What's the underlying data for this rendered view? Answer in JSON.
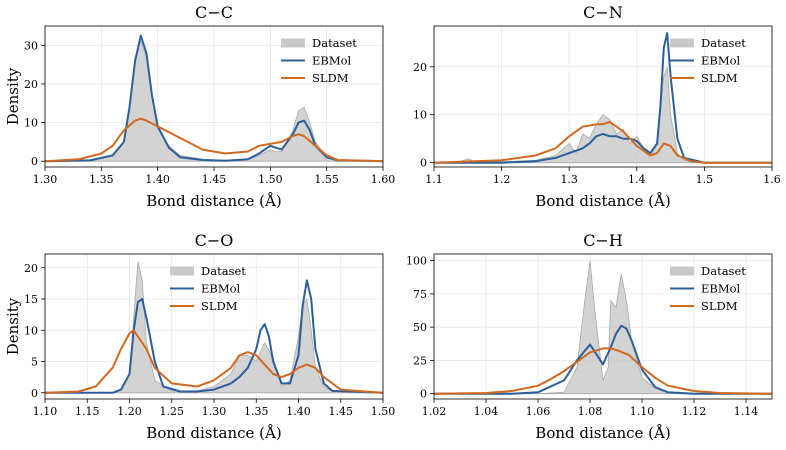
{
  "figure": {
    "ylabel": "Density",
    "legend": [
      {
        "name": "Dataset",
        "color": "#c8c8c8",
        "style": "patch"
      },
      {
        "name": "EBMol",
        "color": "#2b5f9c",
        "style": "line"
      },
      {
        "name": "SLDM",
        "color": "#d2691e",
        "style": "line"
      }
    ]
  },
  "chart_data": [
    {
      "type": "area",
      "title": "C−C",
      "xlabel": "Bond distance (Å)",
      "ylabel": "Density",
      "xlim": [
        1.3,
        1.6
      ],
      "ylim": [
        -1.5,
        35
      ],
      "xticks": [
        "1.30",
        "1.35",
        "1.40",
        "1.45",
        "1.50",
        "1.55",
        "1.60"
      ],
      "yticks": [
        "0",
        "10",
        "20",
        "30"
      ],
      "legend_position": "top-right",
      "grid": true,
      "series": [
        {
          "name": "Dataset",
          "color": "#c8c8c8",
          "x": [
            1.3,
            1.34,
            1.36,
            1.37,
            1.375,
            1.38,
            1.385,
            1.39,
            1.395,
            1.4,
            1.41,
            1.42,
            1.44,
            1.46,
            1.48,
            1.49,
            1.5,
            1.505,
            1.51,
            1.52,
            1.525,
            1.53,
            1.535,
            1.54,
            1.55,
            1.56,
            1.6
          ],
          "values": [
            0,
            0.2,
            1.5,
            5,
            14,
            27,
            31,
            27,
            17,
            9,
            4,
            1.5,
            0.5,
            0.2,
            0.5,
            1.5,
            3,
            2.5,
            2.5,
            8,
            13,
            14,
            10,
            5,
            1,
            0.2,
            0
          ]
        },
        {
          "name": "EBMol",
          "color": "#2b5f9c",
          "x": [
            1.3,
            1.34,
            1.36,
            1.37,
            1.375,
            1.38,
            1.385,
            1.39,
            1.395,
            1.4,
            1.41,
            1.42,
            1.44,
            1.46,
            1.48,
            1.49,
            1.5,
            1.51,
            1.52,
            1.525,
            1.53,
            1.535,
            1.54,
            1.55,
            1.56,
            1.6
          ],
          "values": [
            0,
            0.2,
            1.5,
            5,
            14,
            26,
            32.5,
            28,
            17,
            9,
            3.5,
            1,
            0.3,
            0.1,
            0.5,
            2,
            4,
            3,
            7,
            10,
            10.5,
            8,
            4,
            1,
            0.2,
            0
          ]
        },
        {
          "name": "SLDM",
          "color": "#d2691e",
          "x": [
            1.3,
            1.33,
            1.35,
            1.36,
            1.37,
            1.38,
            1.385,
            1.39,
            1.4,
            1.42,
            1.44,
            1.46,
            1.48,
            1.49,
            1.5,
            1.51,
            1.52,
            1.525,
            1.53,
            1.54,
            1.55,
            1.56,
            1.6
          ],
          "values": [
            0,
            0.5,
            2,
            4,
            8,
            10.5,
            11,
            10.5,
            9,
            6,
            3,
            2,
            2.5,
            4,
            4.5,
            5,
            6.5,
            7,
            6.5,
            4,
            1.5,
            0.3,
            0
          ]
        }
      ]
    },
    {
      "type": "area",
      "title": "C−N",
      "xlabel": "Bond distance (Å)",
      "ylabel": "",
      "xlim": [
        1.1,
        1.6
      ],
      "ylim": [
        -0.9,
        28.5
      ],
      "xticks": [
        "1.1",
        "1.2",
        "1.3",
        "1.4",
        "1.5",
        "1.6"
      ],
      "yticks": [
        "0",
        "10",
        "20"
      ],
      "legend_position": "top-right",
      "grid": true,
      "series": [
        {
          "name": "Dataset",
          "color": "#c8c8c8",
          "x": [
            1.1,
            1.14,
            1.15,
            1.16,
            1.2,
            1.25,
            1.28,
            1.3,
            1.31,
            1.32,
            1.33,
            1.34,
            1.35,
            1.36,
            1.37,
            1.38,
            1.39,
            1.4,
            1.41,
            1.42,
            1.43,
            1.435,
            1.44,
            1.445,
            1.45,
            1.46,
            1.47,
            1.5,
            1.6
          ],
          "values": [
            0,
            0.3,
            0.8,
            0.3,
            0.2,
            0.5,
            1.5,
            4,
            2,
            6,
            5,
            8,
            10,
            9,
            6,
            7,
            4,
            5.5,
            3,
            1.5,
            4,
            12,
            18,
            20,
            10,
            2,
            0.5,
            0,
            0
          ]
        },
        {
          "name": "EBMol",
          "color": "#2b5f9c",
          "x": [
            1.1,
            1.2,
            1.25,
            1.28,
            1.3,
            1.32,
            1.33,
            1.34,
            1.35,
            1.36,
            1.37,
            1.38,
            1.39,
            1.4,
            1.41,
            1.42,
            1.43,
            1.435,
            1.44,
            1.445,
            1.45,
            1.46,
            1.47,
            1.5,
            1.6
          ],
          "values": [
            0,
            0,
            0.3,
            1,
            2,
            3,
            4,
            5.5,
            6,
            5.5,
            5.5,
            5,
            5,
            4.5,
            3,
            2,
            4,
            12,
            24,
            27,
            18,
            5,
            1,
            0,
            0
          ]
        },
        {
          "name": "SLDM",
          "color": "#d2691e",
          "x": [
            1.1,
            1.2,
            1.25,
            1.28,
            1.3,
            1.32,
            1.34,
            1.35,
            1.36,
            1.37,
            1.38,
            1.4,
            1.42,
            1.43,
            1.44,
            1.45,
            1.46,
            1.48,
            1.5,
            1.6
          ],
          "values": [
            0,
            0.5,
            1.5,
            3,
            5.5,
            7.5,
            8,
            8,
            8.5,
            7.5,
            6.5,
            3.5,
            1.5,
            2,
            4,
            3.5,
            1.5,
            0.3,
            0,
            0
          ]
        }
      ]
    },
    {
      "type": "area",
      "title": "C−O",
      "xlabel": "Bond distance (Å)",
      "ylabel": "Density",
      "xlim": [
        1.1,
        1.5
      ],
      "ylim": [
        -1,
        22.2
      ],
      "xticks": [
        "1.10",
        "1.15",
        "1.20",
        "1.25",
        "1.30",
        "1.35",
        "1.40",
        "1.45",
        "1.50"
      ],
      "yticks": [
        "0",
        "5",
        "10",
        "15",
        "20"
      ],
      "legend_position": "top-center",
      "grid": true,
      "series": [
        {
          "name": "Dataset",
          "color": "#c8c8c8",
          "x": [
            1.1,
            1.18,
            1.19,
            1.2,
            1.205,
            1.21,
            1.215,
            1.22,
            1.23,
            1.25,
            1.28,
            1.3,
            1.32,
            1.33,
            1.34,
            1.35,
            1.36,
            1.37,
            1.38,
            1.39,
            1.4,
            1.405,
            1.41,
            1.415,
            1.42,
            1.43,
            1.44,
            1.5
          ],
          "values": [
            0,
            0,
            0.5,
            3,
            12,
            21,
            18,
            8,
            2,
            0.3,
            0.3,
            1,
            3,
            6,
            6,
            5,
            8,
            5.5,
            1,
            2,
            9,
            14,
            15,
            10,
            4,
            1,
            0.2,
            0
          ]
        },
        {
          "name": "EBMol",
          "color": "#2b5f9c",
          "x": [
            1.1,
            1.18,
            1.19,
            1.2,
            1.205,
            1.21,
            1.215,
            1.22,
            1.23,
            1.24,
            1.26,
            1.28,
            1.3,
            1.32,
            1.33,
            1.34,
            1.35,
            1.355,
            1.36,
            1.365,
            1.37,
            1.38,
            1.39,
            1.4,
            1.405,
            1.41,
            1.415,
            1.42,
            1.43,
            1.44,
            1.5
          ],
          "values": [
            0,
            0,
            0.5,
            3,
            10,
            14.5,
            15,
            12,
            5,
            1,
            0.2,
            0.2,
            0.5,
            1.5,
            2.5,
            4,
            7,
            10,
            11,
            9,
            5,
            1.5,
            1.5,
            6,
            14,
            18,
            15,
            7,
            1.5,
            0.3,
            0
          ]
        },
        {
          "name": "SLDM",
          "color": "#d2691e",
          "x": [
            1.1,
            1.14,
            1.16,
            1.18,
            1.19,
            1.2,
            1.205,
            1.21,
            1.22,
            1.23,
            1.25,
            1.28,
            1.3,
            1.32,
            1.33,
            1.34,
            1.35,
            1.36,
            1.37,
            1.38,
            1.39,
            1.4,
            1.41,
            1.42,
            1.43,
            1.45,
            1.5
          ],
          "values": [
            0,
            0.2,
            1,
            4,
            7,
            9.5,
            10,
            9,
            7,
            4,
            1.5,
            1,
            2,
            4,
            6,
            6.5,
            6,
            4.5,
            3,
            2.5,
            3,
            4,
            4.5,
            4,
            2.5,
            0.5,
            0
          ]
        }
      ]
    },
    {
      "type": "area",
      "title": "C−H",
      "xlabel": "Bond distance (Å)",
      "ylabel": "",
      "xlim": [
        1.02,
        1.15
      ],
      "ylim": [
        -4,
        105
      ],
      "xticks": [
        "1.02",
        "1.04",
        "1.06",
        "1.08",
        "1.10",
        "1.12",
        "1.14"
      ],
      "yticks": [
        "0",
        "25",
        "50",
        "75",
        "100"
      ],
      "legend_position": "top-right",
      "grid": true,
      "series": [
        {
          "name": "Dataset",
          "color": "#c8c8c8",
          "x": [
            1.02,
            1.06,
            1.07,
            1.075,
            1.078,
            1.08,
            1.082,
            1.085,
            1.087,
            1.088,
            1.09,
            1.092,
            1.094,
            1.096,
            1.1,
            1.105,
            1.11,
            1.15
          ],
          "values": [
            0,
            0,
            1,
            20,
            70,
            100,
            60,
            10,
            20,
            70,
            65,
            90,
            70,
            40,
            12,
            4,
            0.5,
            0
          ]
        },
        {
          "name": "EBMol",
          "color": "#2b5f9c",
          "x": [
            1.02,
            1.05,
            1.06,
            1.07,
            1.075,
            1.08,
            1.083,
            1.085,
            1.088,
            1.09,
            1.092,
            1.094,
            1.096,
            1.1,
            1.105,
            1.11,
            1.12,
            1.15
          ],
          "values": [
            0,
            0,
            1,
            10,
            25,
            37,
            28,
            22,
            35,
            45,
            51,
            49,
            40,
            18,
            5,
            1,
            0,
            0
          ]
        },
        {
          "name": "SLDM",
          "color": "#d2691e",
          "x": [
            1.02,
            1.04,
            1.05,
            1.06,
            1.065,
            1.07,
            1.075,
            1.08,
            1.085,
            1.088,
            1.09,
            1.095,
            1.1,
            1.105,
            1.11,
            1.12,
            1.13,
            1.15
          ],
          "values": [
            0,
            0.5,
            2,
            6,
            11,
            17,
            24,
            31,
            34,
            34,
            33,
            29,
            20,
            12,
            6,
            2,
            0.5,
            0
          ]
        }
      ]
    }
  ]
}
